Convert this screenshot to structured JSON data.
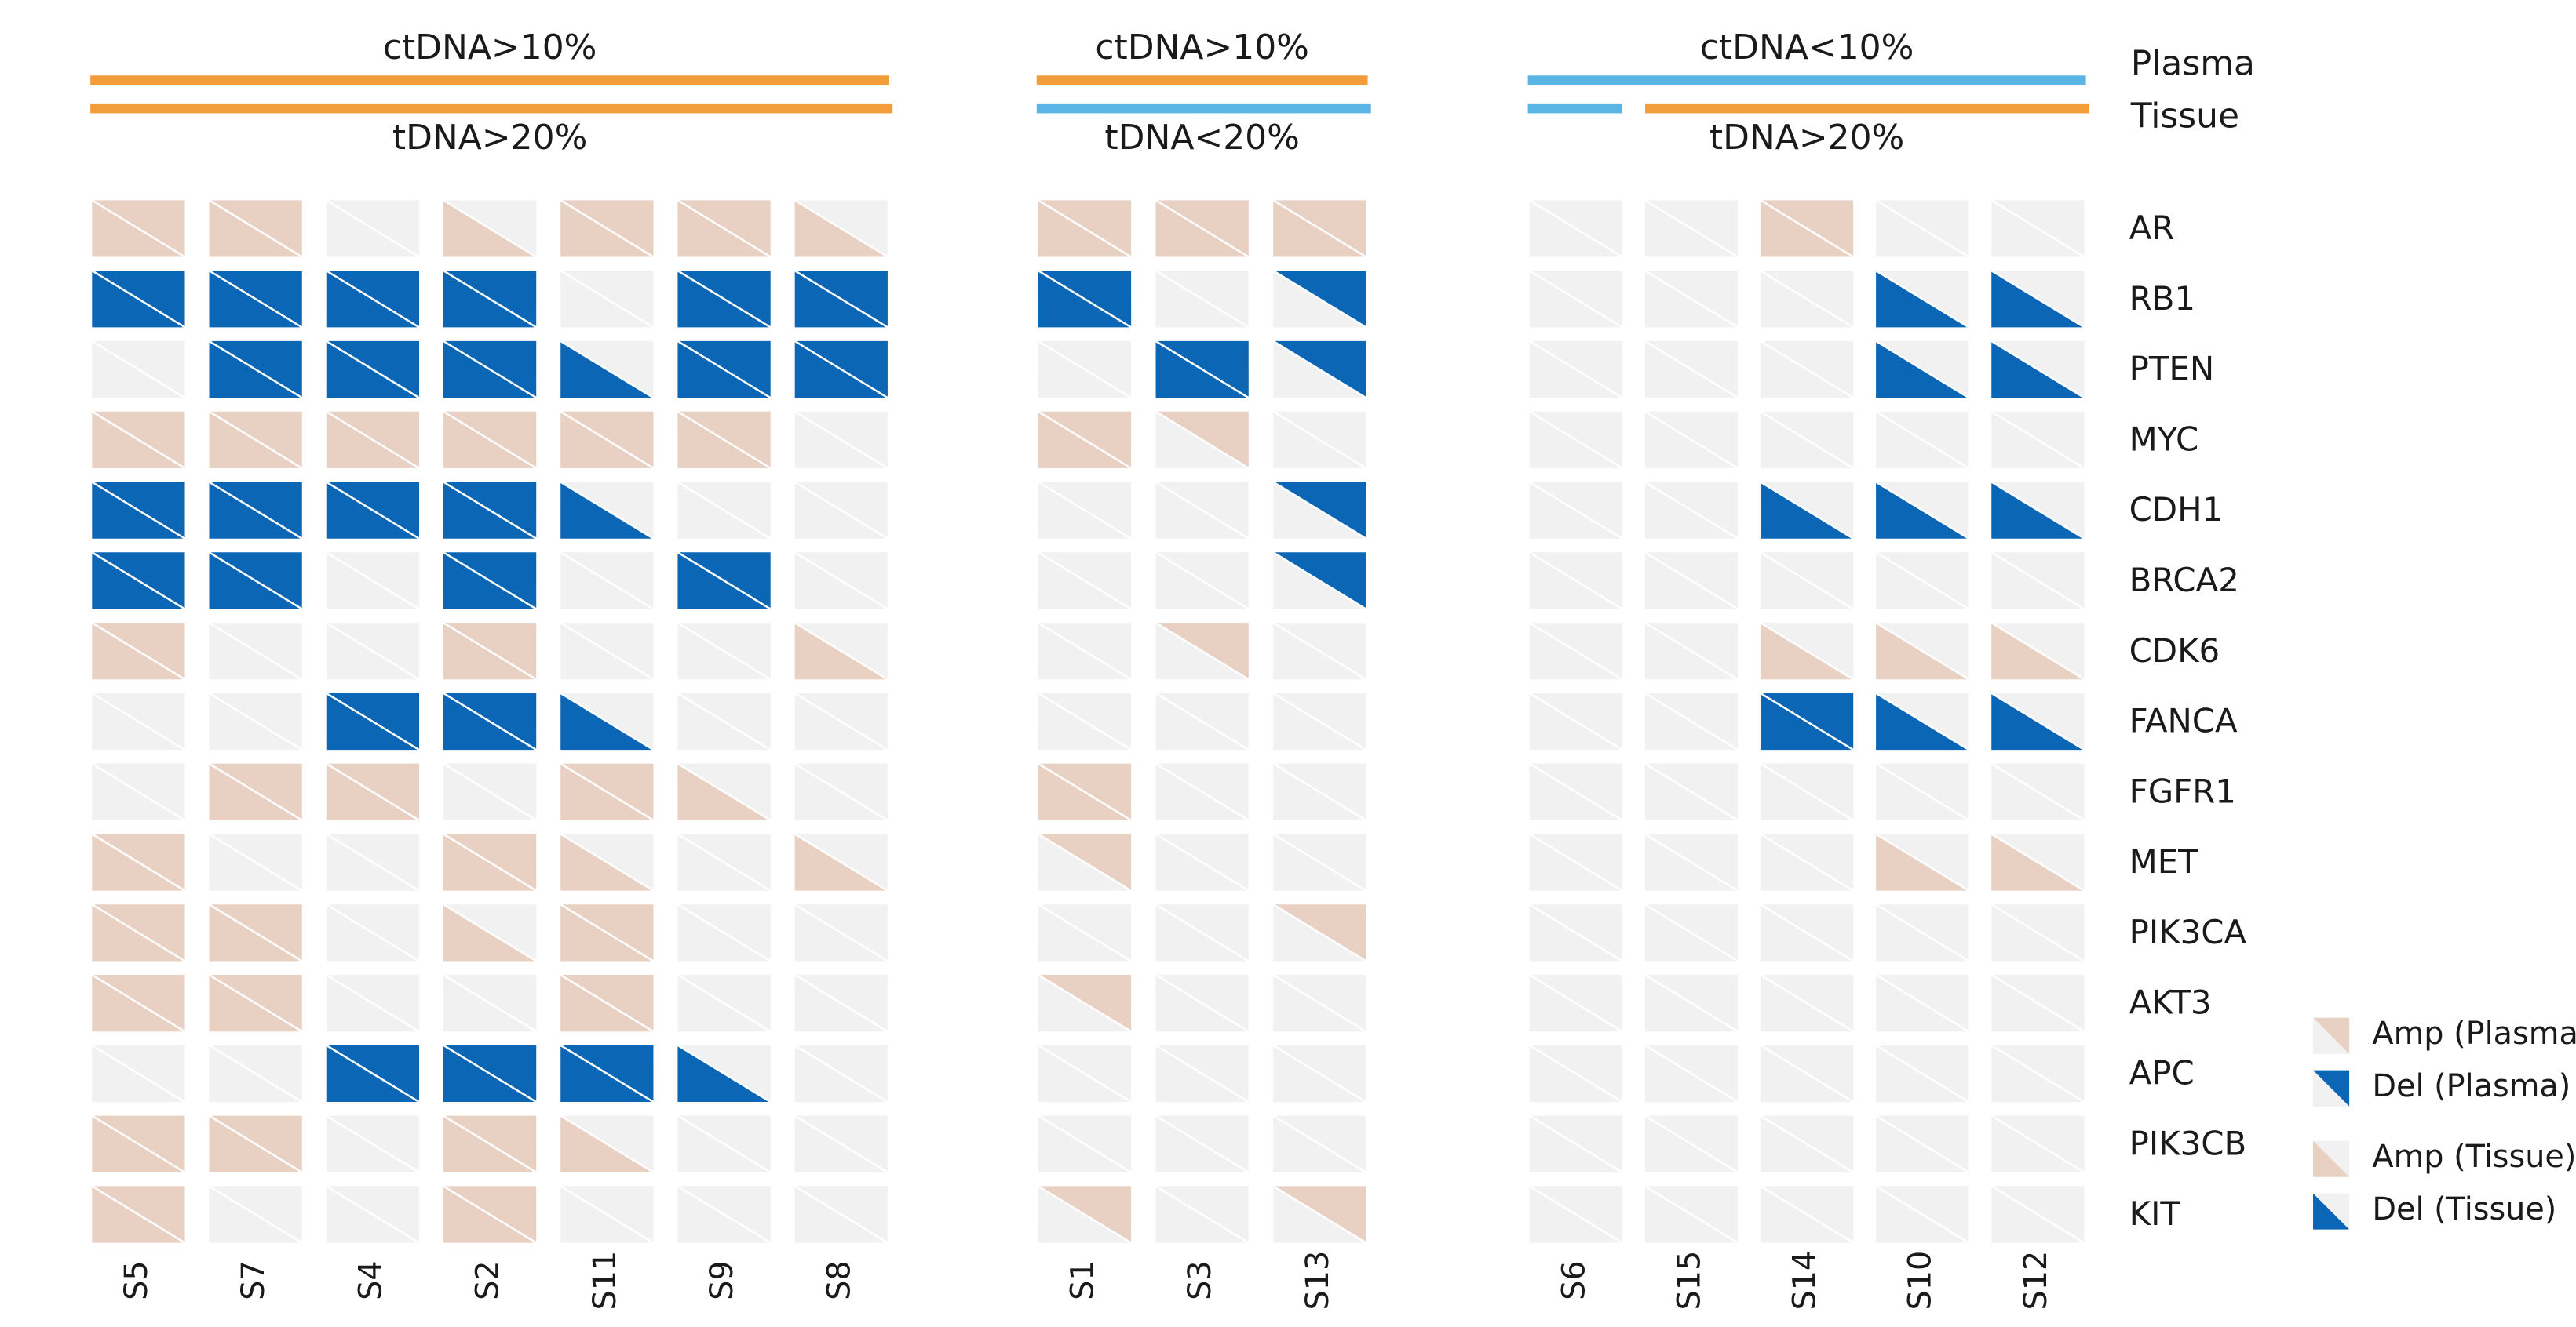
{
  "chart_data": {
    "type": "cnv-grid",
    "genes": [
      "AR",
      "RB1",
      "PTEN",
      "MYC",
      "CDH1",
      "BRCA2",
      "CDK6",
      "FANCA",
      "FGFR1",
      "MET",
      "PIK3CA",
      "AKT3",
      "APC",
      "PIK3CB",
      "KIT"
    ],
    "plasma_title": "Plasma",
    "tissue_title": "Tissue",
    "colors": {
      "amp": "#e8d0c2",
      "del": "#0b66b5",
      "none": "#f1f1f1"
    },
    "groups": [
      {
        "plasma_label": "ctDNA>10%",
        "plasma_color": "#f39c3a",
        "tissue_label": "tDNA>20%",
        "tissue_colors": [
          "#f39c3a",
          "#f39c3a",
          "#f39c3a",
          "#f39c3a",
          "#f39c3a",
          "#f39c3a",
          "#f39c3a"
        ],
        "samples": [
          "S5",
          "S7",
          "S4",
          "S2",
          "S11",
          "S9",
          "S8"
        ],
        "plasma": [
          [
            1,
            1,
            0,
            0,
            1,
            1,
            0
          ],
          [
            -1,
            -1,
            -1,
            -1,
            0,
            -1,
            -1
          ],
          [
            0,
            -1,
            -1,
            -1,
            0,
            -1,
            -1
          ],
          [
            1,
            1,
            1,
            1,
            1,
            1,
            0
          ],
          [
            -1,
            -1,
            -1,
            -1,
            0,
            0,
            0
          ],
          [
            -1,
            -1,
            0,
            -1,
            0,
            -1,
            0
          ],
          [
            1,
            0,
            0,
            1,
            0,
            0,
            0
          ],
          [
            0,
            0,
            -1,
            -1,
            0,
            0,
            0
          ],
          [
            0,
            1,
            1,
            0,
            1,
            0,
            0
          ],
          [
            1,
            0,
            0,
            1,
            0,
            0,
            0
          ],
          [
            1,
            1,
            0,
            0,
            1,
            0,
            0
          ],
          [
            1,
            1,
            0,
            0,
            1,
            0,
            0
          ],
          [
            0,
            0,
            -1,
            -1,
            -1,
            0,
            0
          ],
          [
            1,
            1,
            0,
            1,
            0,
            0,
            0
          ],
          [
            1,
            0,
            0,
            1,
            0,
            0,
            0
          ]
        ],
        "tissue": [
          [
            1,
            1,
            0,
            1,
            1,
            1,
            1
          ],
          [
            -1,
            -1,
            -1,
            -1,
            0,
            -1,
            -1
          ],
          [
            0,
            -1,
            -1,
            -1,
            -1,
            -1,
            -1
          ],
          [
            1,
            1,
            1,
            1,
            1,
            1,
            0
          ],
          [
            -1,
            -1,
            -1,
            -1,
            -1,
            0,
            0
          ],
          [
            -1,
            -1,
            0,
            -1,
            0,
            -1,
            0
          ],
          [
            1,
            0,
            0,
            1,
            0,
            0,
            1
          ],
          [
            0,
            0,
            -1,
            -1,
            -1,
            0,
            0
          ],
          [
            0,
            1,
            1,
            0,
            1,
            1,
            0
          ],
          [
            1,
            0,
            0,
            1,
            1,
            0,
            1
          ],
          [
            1,
            1,
            0,
            1,
            1,
            0,
            0
          ],
          [
            1,
            1,
            0,
            0,
            1,
            0,
            0
          ],
          [
            0,
            0,
            -1,
            -1,
            -1,
            -1,
            0
          ],
          [
            1,
            1,
            0,
            1,
            1,
            0,
            0
          ],
          [
            1,
            0,
            0,
            1,
            0,
            0,
            0
          ]
        ]
      },
      {
        "plasma_label": "ctDNA>10%",
        "plasma_color": "#f39c3a",
        "tissue_label": "tDNA<20%",
        "tissue_colors": [
          "#5ab4e5",
          "#5ab4e5",
          "#5ab4e5"
        ],
        "samples": [
          "S1",
          "S3",
          "S13"
        ],
        "plasma": [
          [
            1,
            1,
            1
          ],
          [
            -1,
            0,
            -1
          ],
          [
            0,
            -1,
            -1
          ],
          [
            1,
            1,
            0
          ],
          [
            0,
            0,
            -1
          ],
          [
            0,
            0,
            -1
          ],
          [
            0,
            1,
            0
          ],
          [
            0,
            0,
            0
          ],
          [
            1,
            0,
            0
          ],
          [
            1,
            0,
            0
          ],
          [
            0,
            0,
            1
          ],
          [
            1,
            0,
            0
          ],
          [
            0,
            0,
            0
          ],
          [
            0,
            0,
            0
          ],
          [
            1,
            0,
            1
          ]
        ],
        "tissue": [
          [
            1,
            1,
            1
          ],
          [
            -1,
            0,
            0
          ],
          [
            0,
            -1,
            0
          ],
          [
            1,
            0,
            0
          ],
          [
            0,
            0,
            0
          ],
          [
            0,
            0,
            0
          ],
          [
            0,
            0,
            0
          ],
          [
            0,
            0,
            0
          ],
          [
            1,
            0,
            0
          ],
          [
            0,
            0,
            0
          ],
          [
            0,
            0,
            0
          ],
          [
            0,
            0,
            0
          ],
          [
            0,
            0,
            0
          ],
          [
            0,
            0,
            0
          ],
          [
            0,
            0,
            0
          ]
        ]
      },
      {
        "plasma_label": "ctDNA<10%",
        "plasma_color": "#5ab4e5",
        "tissue_label": "tDNA>20%",
        "tissue_colors": [
          "#5ab4e5",
          "#f39c3a",
          "#f39c3a",
          "#f39c3a",
          "#f39c3a"
        ],
        "samples": [
          "S6",
          "S15",
          "S14",
          "S10",
          "S12"
        ],
        "plasma": [
          [
            0,
            0,
            1,
            0,
            0
          ],
          [
            0,
            0,
            0,
            0,
            0
          ],
          [
            0,
            0,
            0,
            0,
            0
          ],
          [
            0,
            0,
            0,
            0,
            0
          ],
          [
            0,
            0,
            0,
            0,
            0
          ],
          [
            0,
            0,
            0,
            0,
            0
          ],
          [
            0,
            0,
            0,
            0,
            0
          ],
          [
            0,
            0,
            -1,
            0,
            0
          ],
          [
            0,
            0,
            0,
            0,
            0
          ],
          [
            0,
            0,
            0,
            0,
            0
          ],
          [
            0,
            0,
            0,
            0,
            0
          ],
          [
            0,
            0,
            0,
            0,
            0
          ],
          [
            0,
            0,
            0,
            0,
            0
          ],
          [
            0,
            0,
            0,
            0,
            0
          ],
          [
            0,
            0,
            0,
            0,
            0
          ]
        ],
        "tissue": [
          [
            0,
            0,
            1,
            0,
            0
          ],
          [
            0,
            0,
            0,
            -1,
            -1
          ],
          [
            0,
            0,
            0,
            -1,
            -1
          ],
          [
            0,
            0,
            0,
            0,
            0
          ],
          [
            0,
            0,
            -1,
            -1,
            -1
          ],
          [
            0,
            0,
            0,
            0,
            0
          ],
          [
            0,
            0,
            1,
            1,
            1
          ],
          [
            0,
            0,
            -1,
            -1,
            -1
          ],
          [
            0,
            0,
            0,
            0,
            0
          ],
          [
            0,
            0,
            0,
            1,
            1
          ],
          [
            0,
            0,
            0,
            0,
            0
          ],
          [
            0,
            0,
            0,
            0,
            0
          ],
          [
            0,
            0,
            0,
            0,
            0
          ],
          [
            0,
            0,
            0,
            0,
            0
          ],
          [
            0,
            0,
            0,
            0,
            0
          ]
        ]
      }
    ],
    "legend": [
      {
        "name": "Amp (Plasma)",
        "layer": "plasma",
        "state": 1
      },
      {
        "name": "Del (Plasma)",
        "layer": "plasma",
        "state": -1
      },
      {
        "name": "Amp (Tissue)",
        "layer": "tissue",
        "state": 1
      },
      {
        "name": "Del (Tissue)",
        "layer": "tissue",
        "state": -1
      }
    ]
  }
}
